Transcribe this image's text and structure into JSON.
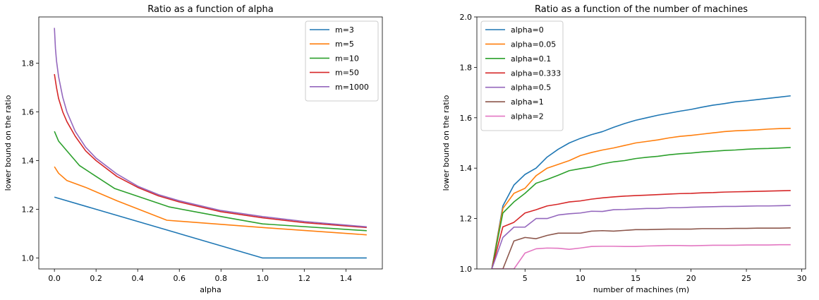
{
  "chart_data": [
    {
      "type": "line",
      "title": "Ratio as a function of alpha",
      "xlabel": "alpha",
      "ylabel": "lower bound on the ratio",
      "xlim": [
        -0.075,
        1.575
      ],
      "ylim": [
        0.955,
        1.99
      ],
      "xticks": [
        0.0,
        0.2,
        0.4,
        0.6,
        0.8,
        1.0,
        1.2,
        1.4
      ],
      "xtick_labels": [
        "0.0",
        "0.2",
        "0.4",
        "0.6",
        "0.8",
        "1.0",
        "1.2",
        "1.4"
      ],
      "yticks": [
        1.0,
        1.2,
        1.4,
        1.6,
        1.8
      ],
      "ytick_labels": [
        "1.0",
        "1.2",
        "1.4",
        "1.6",
        "1.8"
      ],
      "grid": false,
      "legend": "top-right",
      "series": [
        {
          "name": "m=3",
          "color": "#1f77b4",
          "x": [
            0,
            1.0,
            1.5
          ],
          "y": [
            1.25,
            1.0,
            1.0
          ]
        },
        {
          "name": "m=5",
          "color": "#ff7f0e",
          "x": [
            0,
            0.02,
            0.06,
            0.15,
            0.3,
            0.54,
            1.0,
            1.5
          ],
          "y": [
            1.375,
            1.348,
            1.318,
            1.29,
            1.235,
            1.155,
            1.125,
            1.095
          ]
        },
        {
          "name": "m=10",
          "color": "#2ca02c",
          "x": [
            0,
            0.02,
            0.06,
            0.12,
            0.2,
            0.29,
            0.55,
            0.8,
            1.0,
            1.5
          ],
          "y": [
            1.52,
            1.48,
            1.44,
            1.38,
            1.335,
            1.285,
            1.21,
            1.17,
            1.14,
            1.112
          ]
        },
        {
          "name": "m=50",
          "color": "#d62728",
          "x": [
            0,
            0.01,
            0.02,
            0.04,
            0.06,
            0.1,
            0.15,
            0.2,
            0.3,
            0.4,
            0.5,
            0.6,
            0.8,
            1.0,
            1.2,
            1.5
          ],
          "y": [
            1.755,
            1.7,
            1.655,
            1.6,
            1.56,
            1.5,
            1.44,
            1.4,
            1.335,
            1.29,
            1.255,
            1.23,
            1.19,
            1.165,
            1.145,
            1.125
          ]
        },
        {
          "name": "m=1000",
          "color": "#9467bd",
          "x": [
            0,
            0.005,
            0.01,
            0.02,
            0.04,
            0.06,
            0.1,
            0.15,
            0.2,
            0.3,
            0.4,
            0.5,
            0.6,
            0.8,
            1.0,
            1.2,
            1.5
          ],
          "y": [
            1.945,
            1.86,
            1.81,
            1.745,
            1.66,
            1.6,
            1.52,
            1.455,
            1.41,
            1.345,
            1.295,
            1.26,
            1.235,
            1.195,
            1.17,
            1.15,
            1.128
          ]
        }
      ]
    },
    {
      "type": "line",
      "title": "Ratio as a function of the number of machines",
      "xlabel": "number of machines (m)",
      "ylabel": "lower bound on the ratio",
      "xlim": [
        0.65,
        30.35
      ],
      "ylim": [
        1.0,
        2.0
      ],
      "xticks": [
        5,
        10,
        15,
        20,
        25,
        30
      ],
      "xtick_labels": [
        "5",
        "10",
        "15",
        "20",
        "25",
        "30"
      ],
      "yticks": [
        1.0,
        1.2,
        1.4,
        1.6,
        1.8,
        2.0
      ],
      "ytick_labels": [
        "1.0",
        "1.2",
        "1.4",
        "1.6",
        "1.8",
        "2.0"
      ],
      "grid": false,
      "legend": "top-left",
      "x": [
        2,
        3,
        4,
        5,
        6,
        7,
        8,
        9,
        10,
        11,
        12,
        13,
        14,
        15,
        16,
        17,
        18,
        19,
        20,
        21,
        22,
        23,
        24,
        25,
        26,
        27,
        28,
        29
      ],
      "series": [
        {
          "name": "alpha=0",
          "color": "#1f77b4",
          "values": [
            1.0,
            1.25,
            1.333,
            1.375,
            1.4,
            1.444,
            1.475,
            1.5,
            1.518,
            1.533,
            1.545,
            1.562,
            1.577,
            1.59,
            1.6,
            1.61,
            1.618,
            1.626,
            1.633,
            1.642,
            1.65,
            1.656,
            1.663,
            1.667,
            1.672,
            1.677,
            1.682,
            1.687
          ]
        },
        {
          "name": "alpha=0.05",
          "color": "#ff7f0e",
          "values": [
            1.0,
            1.24,
            1.3,
            1.32,
            1.37,
            1.4,
            1.415,
            1.43,
            1.45,
            1.462,
            1.472,
            1.48,
            1.49,
            1.5,
            1.506,
            1.512,
            1.52,
            1.526,
            1.53,
            1.535,
            1.54,
            1.545,
            1.548,
            1.55,
            1.552,
            1.555,
            1.557,
            1.558
          ]
        },
        {
          "name": "alpha=0.1",
          "color": "#2ca02c",
          "values": [
            1.0,
            1.222,
            1.266,
            1.3,
            1.34,
            1.355,
            1.372,
            1.39,
            1.398,
            1.405,
            1.417,
            1.425,
            1.43,
            1.438,
            1.443,
            1.447,
            1.453,
            1.457,
            1.46,
            1.464,
            1.467,
            1.47,
            1.472,
            1.475,
            1.477,
            1.478,
            1.48,
            1.482
          ]
        },
        {
          "name": "alpha=0.333",
          "color": "#d62728",
          "values": [
            1.0,
            1.167,
            1.185,
            1.222,
            1.235,
            1.25,
            1.257,
            1.266,
            1.27,
            1.277,
            1.282,
            1.286,
            1.289,
            1.291,
            1.293,
            1.295,
            1.297,
            1.299,
            1.3,
            1.302,
            1.303,
            1.305,
            1.306,
            1.307,
            1.308,
            1.309,
            1.31,
            1.311
          ]
        },
        {
          "name": "alpha=0.5",
          "color": "#9467bd",
          "values": [
            1.0,
            1.125,
            1.166,
            1.166,
            1.2,
            1.2,
            1.214,
            1.219,
            1.222,
            1.229,
            1.228,
            1.235,
            1.236,
            1.238,
            1.24,
            1.24,
            1.243,
            1.243,
            1.245,
            1.246,
            1.247,
            1.248,
            1.248,
            1.249,
            1.25,
            1.25,
            1.251,
            1.252
          ]
        },
        {
          "name": "alpha=1",
          "color": "#8c564b",
          "values": [
            1.0,
            1.0,
            1.111,
            1.125,
            1.12,
            1.133,
            1.142,
            1.142,
            1.142,
            1.15,
            1.152,
            1.15,
            1.153,
            1.156,
            1.156,
            1.157,
            1.158,
            1.158,
            1.158,
            1.16,
            1.16,
            1.16,
            1.161,
            1.161,
            1.162,
            1.162,
            1.162,
            1.163
          ]
        },
        {
          "name": "alpha=2",
          "color": "#e377c2",
          "values": [
            1.0,
            1.0,
            1.0,
            1.063,
            1.08,
            1.083,
            1.082,
            1.078,
            1.083,
            1.089,
            1.09,
            1.09,
            1.089,
            1.089,
            1.091,
            1.092,
            1.093,
            1.093,
            1.092,
            1.093,
            1.094,
            1.094,
            1.094,
            1.095,
            1.095,
            1.095,
            1.096,
            1.096
          ]
        }
      ]
    }
  ]
}
